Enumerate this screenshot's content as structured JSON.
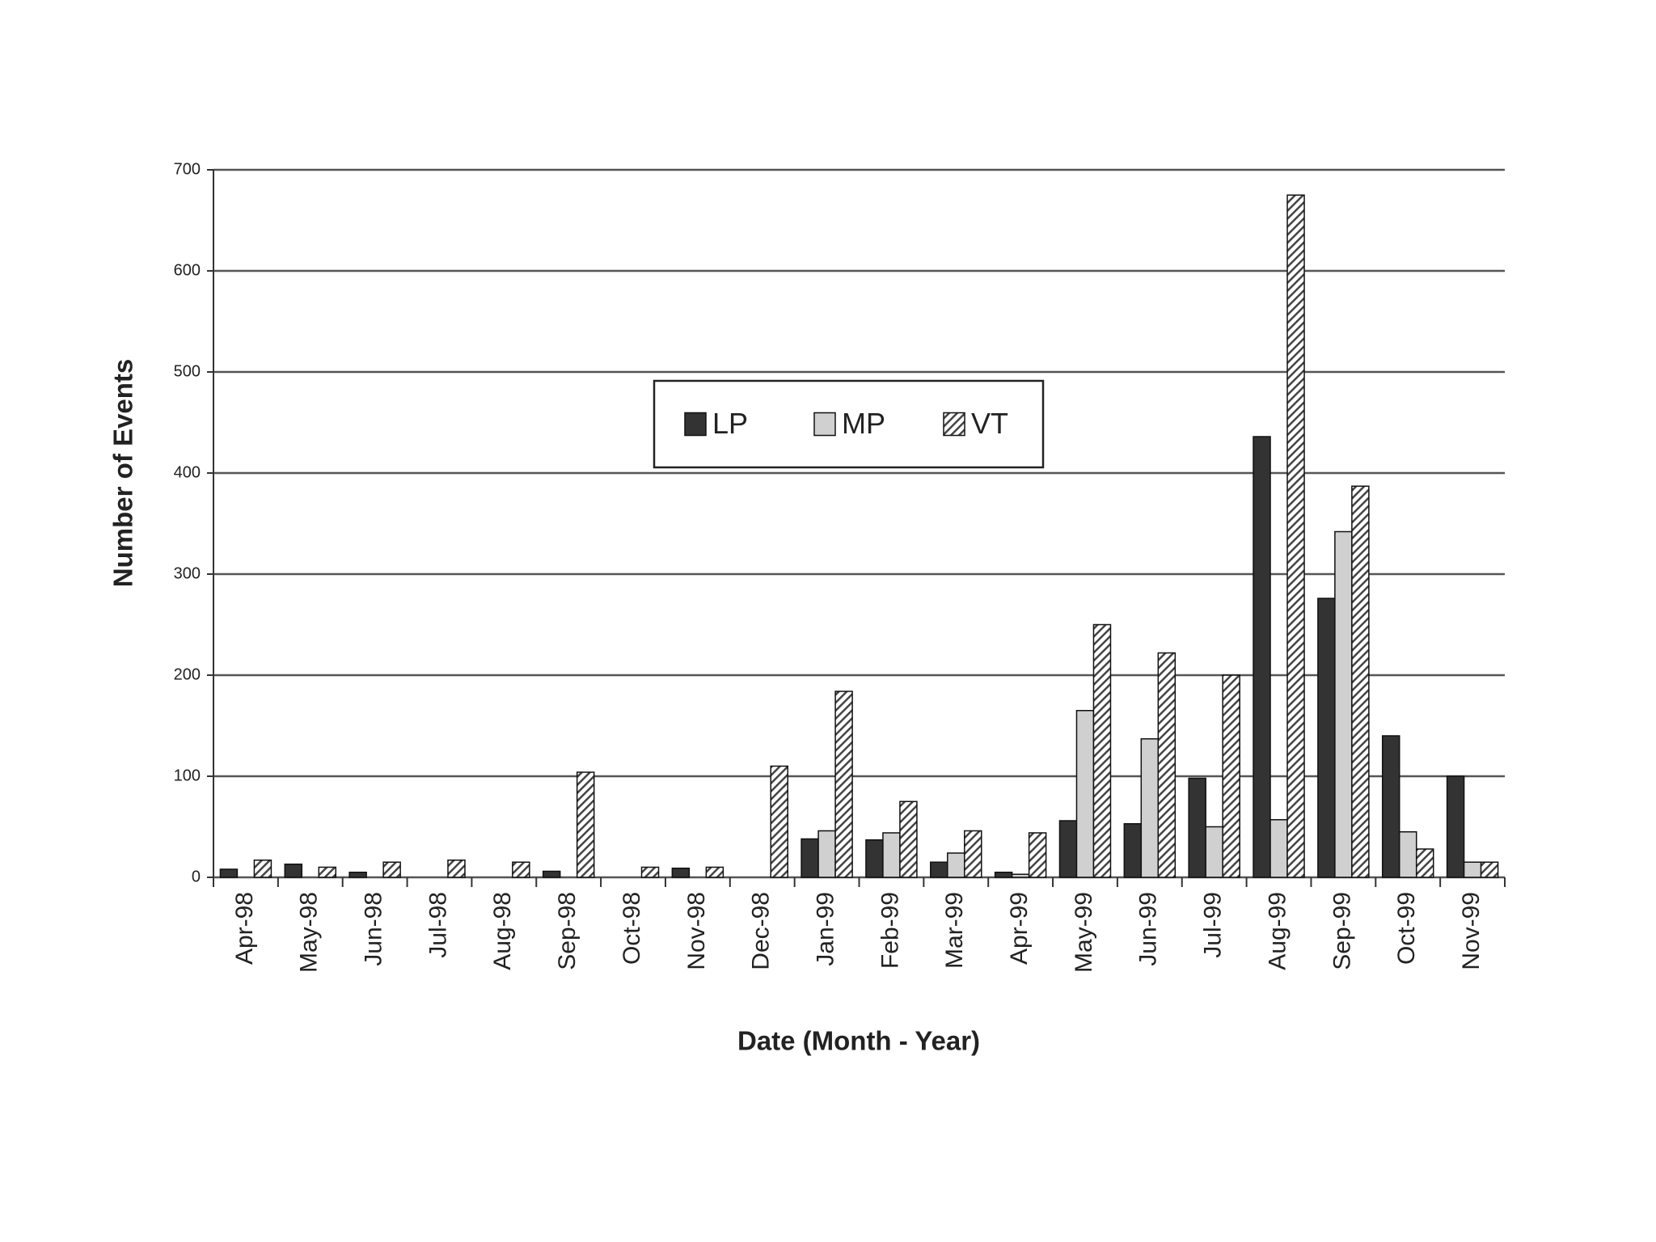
{
  "chart_data": {
    "type": "bar",
    "x_label": "Date (Month - Year)",
    "y_label": "Number of Events",
    "categories": [
      "Apr-98",
      "May-98",
      "Jun-98",
      "Jul-98",
      "Aug-98",
      "Sep-98",
      "Oct-98",
      "Nov-98",
      "Dec-98",
      "Jan-99",
      "Feb-99",
      "Mar-99",
      "Apr-99",
      "May-99",
      "Jun-99",
      "Jul-99",
      "Aug-99",
      "Sep-99",
      "Oct-99",
      "Nov-99"
    ],
    "series": [
      {
        "name": "LP",
        "color": "#333333",
        "values": [
          8,
          13,
          5,
          0,
          0,
          6,
          0,
          9,
          0,
          38,
          37,
          15,
          5,
          56,
          53,
          98,
          436,
          276,
          140,
          100
        ]
      },
      {
        "name": "MP",
        "color": "#d0d0d0",
        "values": [
          0,
          0,
          0,
          0,
          0,
          0,
          0,
          0,
          0,
          46,
          44,
          24,
          3,
          165,
          137,
          50,
          57,
          342,
          45,
          15
        ]
      },
      {
        "name": "VT",
        "color": "#444444",
        "pattern": "hatch",
        "values": [
          17,
          10,
          15,
          17,
          15,
          104,
          10,
          10,
          110,
          184,
          75,
          46,
          44,
          250,
          222,
          200,
          675,
          387,
          28,
          15
        ]
      }
    ],
    "ylim": [
      0,
      700
    ],
    "yticks": [
      0,
      100,
      200,
      300,
      400,
      500,
      600,
      700
    ],
    "grid": true,
    "legend": "top"
  }
}
